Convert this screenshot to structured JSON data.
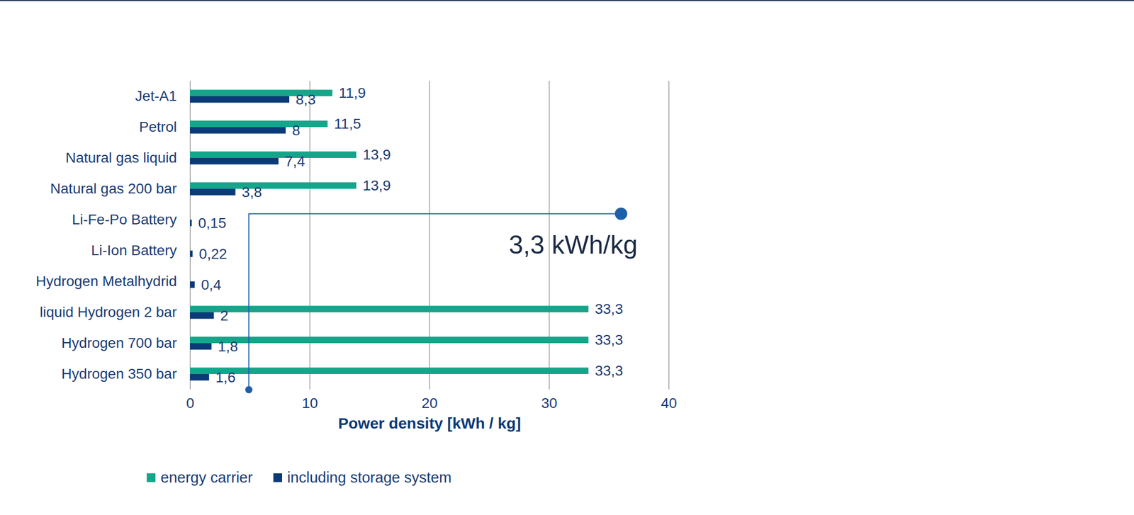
{
  "chart_data": {
    "type": "bar",
    "orientation": "horizontal",
    "categories": [
      "Jet-A1",
      "Petrol",
      "Natural gas liquid",
      "Natural gas 200 bar",
      "Li-Fe-Po Battery",
      "Li-Ion Battery",
      "Hydrogen Metalhydrid",
      "liquid Hydrogen 2 bar",
      "Hydrogen 700 bar",
      "Hydrogen 350 bar"
    ],
    "series": [
      {
        "name": "energy carrier",
        "color": "#13a68a",
        "values": [
          11.9,
          11.5,
          13.9,
          13.9,
          null,
          null,
          null,
          33.3,
          33.3,
          33.3
        ],
        "value_labels": [
          "11,9",
          "11,5",
          "13,9",
          "13,9",
          null,
          null,
          null,
          "33,3",
          "33,3",
          "33,3"
        ]
      },
      {
        "name": "including storage system",
        "color": "#0b3a78",
        "values": [
          8.3,
          8,
          7.4,
          3.8,
          0.15,
          0.22,
          0.4,
          2,
          1.8,
          1.6
        ],
        "value_labels": [
          "8,3",
          "8",
          "7,4",
          "3,8",
          "0,15",
          "0,22",
          "0,4",
          "2",
          "1,8",
          "1,6"
        ]
      }
    ],
    "xlabel": "Power density [kWh / kg]",
    "xlim": [
      0,
      40
    ],
    "xticks": [
      0,
      10,
      20,
      30,
      40
    ],
    "grid": true,
    "data_labels": true,
    "legend": "bottom",
    "annotations": [
      {
        "text": "3,3 kWh/kg",
        "x": 4.9,
        "x_end": 36,
        "category": "Li-Fe-Po Battery"
      }
    ]
  }
}
